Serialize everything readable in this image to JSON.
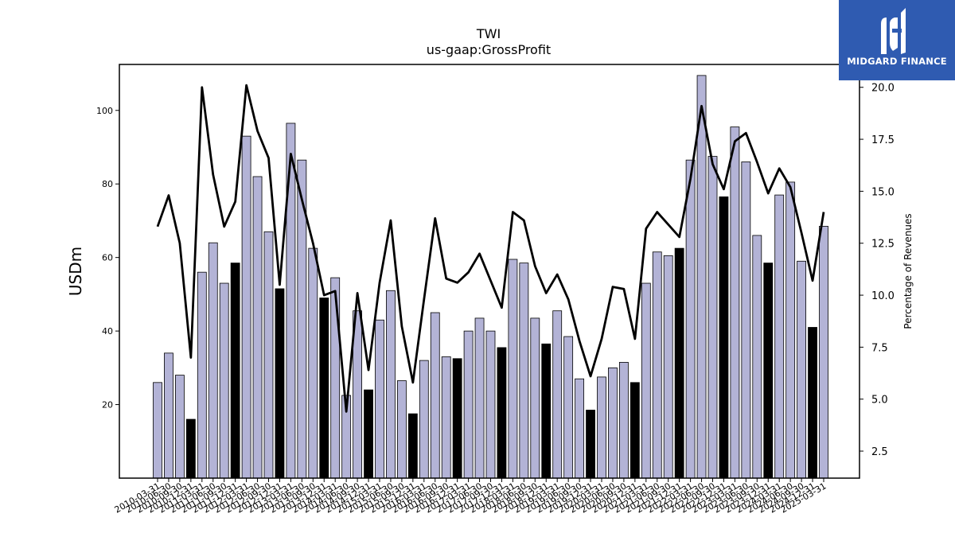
{
  "brand": {
    "name": "MIDGARD FINANCE",
    "color": "#2f5bb1"
  },
  "chart_data": {
    "type": "bar",
    "title": "TWI",
    "subtitle": "us-gaap:GrossProfit",
    "ylabel": "USDm",
    "y2label": "Percentage of Revenues",
    "ylim": [
      0,
      112.5
    ],
    "y2lim": [
      1.2,
      21.1
    ],
    "yticks": [
      20,
      40,
      60,
      80,
      100
    ],
    "y2ticks": [
      2.5,
      5.0,
      7.5,
      10.0,
      12.5,
      15.0,
      17.5,
      20.0
    ],
    "colors": {
      "bar_quarter": "#b3b3d6",
      "bar_annual": "#000000",
      "line": "#000000"
    },
    "categories": [
      "2010-03-31",
      "2010-06-30",
      "2010-09-30",
      "2010-12-31",
      "2011-03-31",
      "2011-06-30",
      "2011-09-30",
      "2011-12-31",
      "2012-03-31",
      "2012-06-30",
      "2012-09-30",
      "2012-12-31",
      "2013-03-31",
      "2013-06-30",
      "2013-09-30",
      "2013-12-31",
      "2014-03-31",
      "2014-06-30",
      "2014-09-30",
      "2014-12-31",
      "2015-03-31",
      "2015-06-30",
      "2015-09-30",
      "2015-12-31",
      "2016-03-31",
      "2016-06-30",
      "2016-09-30",
      "2016-12-31",
      "2017-03-31",
      "2017-06-30",
      "2017-09-30",
      "2017-12-31",
      "2018-03-31",
      "2018-06-30",
      "2018-09-30",
      "2018-12-31",
      "2019-03-31",
      "2019-06-30",
      "2019-09-30",
      "2019-12-31",
      "2020-03-31",
      "2020-06-30",
      "2020-09-30",
      "2020-12-31",
      "2021-03-31",
      "2021-06-30",
      "2021-09-30",
      "2021-12-31",
      "2022-03-31",
      "2022-06-30",
      "2022-09-30",
      "2022-12-31",
      "2023-03-31",
      "2023-06-30",
      "2023-09-30",
      "2023-12-31",
      "2024-03-31",
      "2024-06-30",
      "2024-09-30",
      "2024-12-31",
      "2025-03-31"
    ],
    "series": [
      {
        "type": "bar",
        "axis": "left",
        "values": [
          26,
          34,
          28,
          16,
          56,
          64,
          53,
          58.5,
          93,
          82,
          67,
          51.5,
          96.5,
          86.5,
          62.5,
          49,
          54.5,
          22.5,
          45.5,
          24,
          43,
          51,
          26.5,
          17.5,
          32,
          45,
          33,
          32.5,
          40,
          43.5,
          40,
          35.5,
          59.5,
          58.5,
          43.5,
          36.5,
          45.5,
          38.5,
          27,
          18.5,
          27.5,
          30,
          31.5,
          26,
          53,
          61.5,
          60.5,
          62.5,
          86.5,
          109.5,
          87.5,
          76.5,
          95.5,
          86,
          66,
          58.5,
          77,
          80.5,
          59,
          41,
          68.5
        ],
        "annual": [
          false,
          false,
          false,
          true,
          false,
          false,
          false,
          true,
          false,
          false,
          false,
          true,
          false,
          false,
          false,
          true,
          false,
          false,
          false,
          true,
          false,
          false,
          false,
          true,
          false,
          false,
          false,
          true,
          false,
          false,
          false,
          true,
          false,
          false,
          false,
          true,
          false,
          false,
          false,
          true,
          false,
          false,
          false,
          true,
          false,
          false,
          false,
          true,
          false,
          false,
          false,
          true,
          false,
          false,
          false,
          true,
          false,
          false,
          false,
          true,
          false
        ]
      },
      {
        "type": "line",
        "axis": "right",
        "values": [
          13.3,
          14.8,
          12.5,
          7.0,
          20.0,
          15.8,
          13.3,
          14.5,
          20.1,
          17.9,
          16.6,
          10.5,
          16.8,
          14.6,
          12.5,
          10.0,
          10.2,
          4.4,
          10.1,
          6.4,
          10.6,
          13.6,
          8.5,
          5.8,
          9.8,
          13.7,
          10.8,
          10.6,
          11.1,
          12.0,
          10.7,
          9.4,
          14.0,
          13.6,
          11.4,
          10.1,
          11.0,
          9.8,
          7.8,
          6.1,
          7.9,
          10.4,
          10.3,
          7.9,
          13.2,
          14.0,
          13.4,
          12.8,
          15.6,
          19.1,
          16.3,
          15.1,
          17.4,
          17.8,
          16.4,
          14.9,
          16.1,
          15.2,
          13.0,
          10.7,
          14.0
        ]
      }
    ]
  }
}
